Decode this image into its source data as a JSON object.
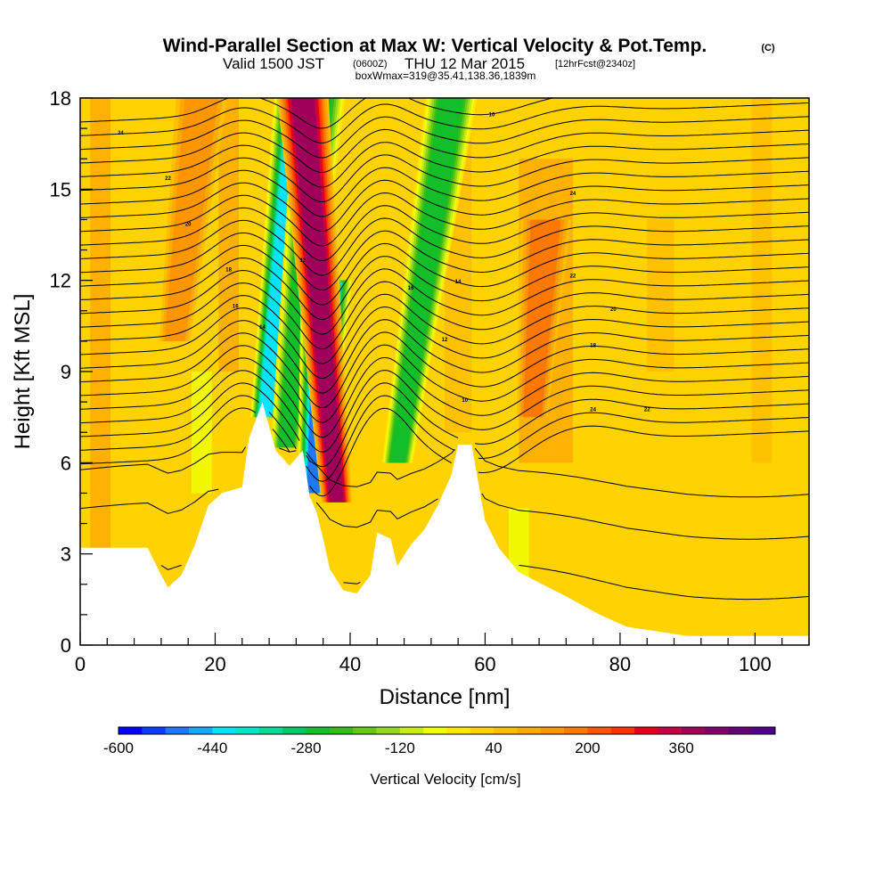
{
  "title": {
    "main": "Wind-Parallel Section at Max W: Vertical Velocity & Pot.Temp.",
    "copyright": "(C)",
    "valid_prefix": "Valid 1500 JST",
    "valid_utc": "(0600Z)",
    "valid_date": "THU 12 Mar 2015",
    "forecast": "[12hrFcst@2340z]",
    "box": "boxWmax=319@35.41,138.36,1839m"
  },
  "chart_data": {
    "type": "heatmap",
    "title": "Wind-Parallel Section at Max W: Vertical Velocity & Pot.Temp.",
    "xlabel": "Distance [nm]",
    "ylabel": "Height [Kft MSL]",
    "xlim": [
      0,
      108
    ],
    "ylim": [
      0,
      18
    ],
    "x_ticks": [
      "0",
      "20",
      "40",
      "60",
      "80",
      "100"
    ],
    "x_tick_values": [
      0,
      20,
      40,
      60,
      80,
      100
    ],
    "y_ticks": [
      "0",
      "3",
      "6",
      "9",
      "12",
      "15",
      "18"
    ],
    "y_tick_values": [
      0,
      3,
      6,
      9,
      12,
      15,
      18
    ],
    "colorbar": {
      "label": "Vertical Velocity [cm/s]",
      "tick_labels": [
        "-600",
        "-440",
        "-280",
        "-120",
        "40",
        "200",
        "360"
      ],
      "tick_values": [
        -600,
        -440,
        -280,
        -120,
        40,
        200,
        360
      ],
      "bin_width": 40,
      "colors": [
        "#0000ff",
        "#0a3cff",
        "#1e78ff",
        "#14a8ff",
        "#00e4ff",
        "#00e6c8",
        "#00dc96",
        "#00c864",
        "#14be28",
        "#32be14",
        "#64c814",
        "#96d81e",
        "#c8eb14",
        "#f0ff00",
        "#ffe600",
        "#ffd200",
        "#ffbe00",
        "#ffaa00",
        "#ff9600",
        "#ff7800",
        "#ff5500",
        "#ff3200",
        "#e6001e",
        "#c80046",
        "#a0005a",
        "#82006e",
        "#640078",
        "#50008c"
      ]
    },
    "terrain_kft": [
      [
        0,
        3.2
      ],
      [
        10,
        3.2
      ],
      [
        12,
        2.3
      ],
      [
        13,
        1.9
      ],
      [
        15,
        2.3
      ],
      [
        17,
        3.3
      ],
      [
        19,
        4.6
      ],
      [
        21,
        5.0
      ],
      [
        24,
        5.2
      ],
      [
        25,
        6.8
      ],
      [
        27,
        8.0
      ],
      [
        29,
        6.4
      ],
      [
        31,
        5.9
      ],
      [
        33,
        6.4
      ],
      [
        34,
        4.9
      ],
      [
        35,
        4.4
      ],
      [
        36,
        3.5
      ],
      [
        37,
        2.5
      ],
      [
        39,
        1.8
      ],
      [
        41,
        1.7
      ],
      [
        43,
        2.3
      ],
      [
        44,
        3.7
      ],
      [
        46,
        3.5
      ],
      [
        47,
        2.6
      ],
      [
        49,
        3.3
      ],
      [
        51,
        3.8
      ],
      [
        53,
        4.6
      ],
      [
        55,
        5.6
      ],
      [
        56,
        6.6
      ],
      [
        58,
        6.6
      ],
      [
        60,
        4.1
      ],
      [
        62,
        3.2
      ],
      [
        65,
        2.4
      ],
      [
        72,
        1.6
      ],
      [
        77,
        1.0
      ],
      [
        81,
        0.6
      ],
      [
        90,
        0.3
      ],
      [
        108,
        0.3
      ]
    ],
    "vertical_velocity_features": [
      {
        "x": 27.5,
        "top_kft": 18,
        "bottom_kft": 7.5,
        "value": -440,
        "tilt_nm": 5
      },
      {
        "x": 30.5,
        "top_kft": 18,
        "bottom_kft": 6.5,
        "value": -280,
        "tilt_nm": 5
      },
      {
        "x": 34.5,
        "top_kft": 12,
        "bottom_kft": 5.0,
        "value": -520,
        "tilt_nm": 2
      },
      {
        "x": 38.0,
        "top_kft": 18,
        "bottom_kft": 4.7,
        "value": 360,
        "tilt_nm": -5
      },
      {
        "x": 47.0,
        "top_kft": 18,
        "bottom_kft": 6.0,
        "value": -280,
        "tilt_nm": 8
      },
      {
        "x": 67.0,
        "top_kft": 14,
        "bottom_kft": 7.5,
        "value": 160,
        "tilt_nm": 2
      },
      {
        "x": 14.0,
        "top_kft": 18,
        "bottom_kft": 10.0,
        "value": 120,
        "tilt_nm": 4
      }
    ],
    "isentrope_labels": [
      "24",
      "22",
      "20",
      "18",
      "16",
      "14",
      "12",
      "10"
    ],
    "grid": false
  }
}
